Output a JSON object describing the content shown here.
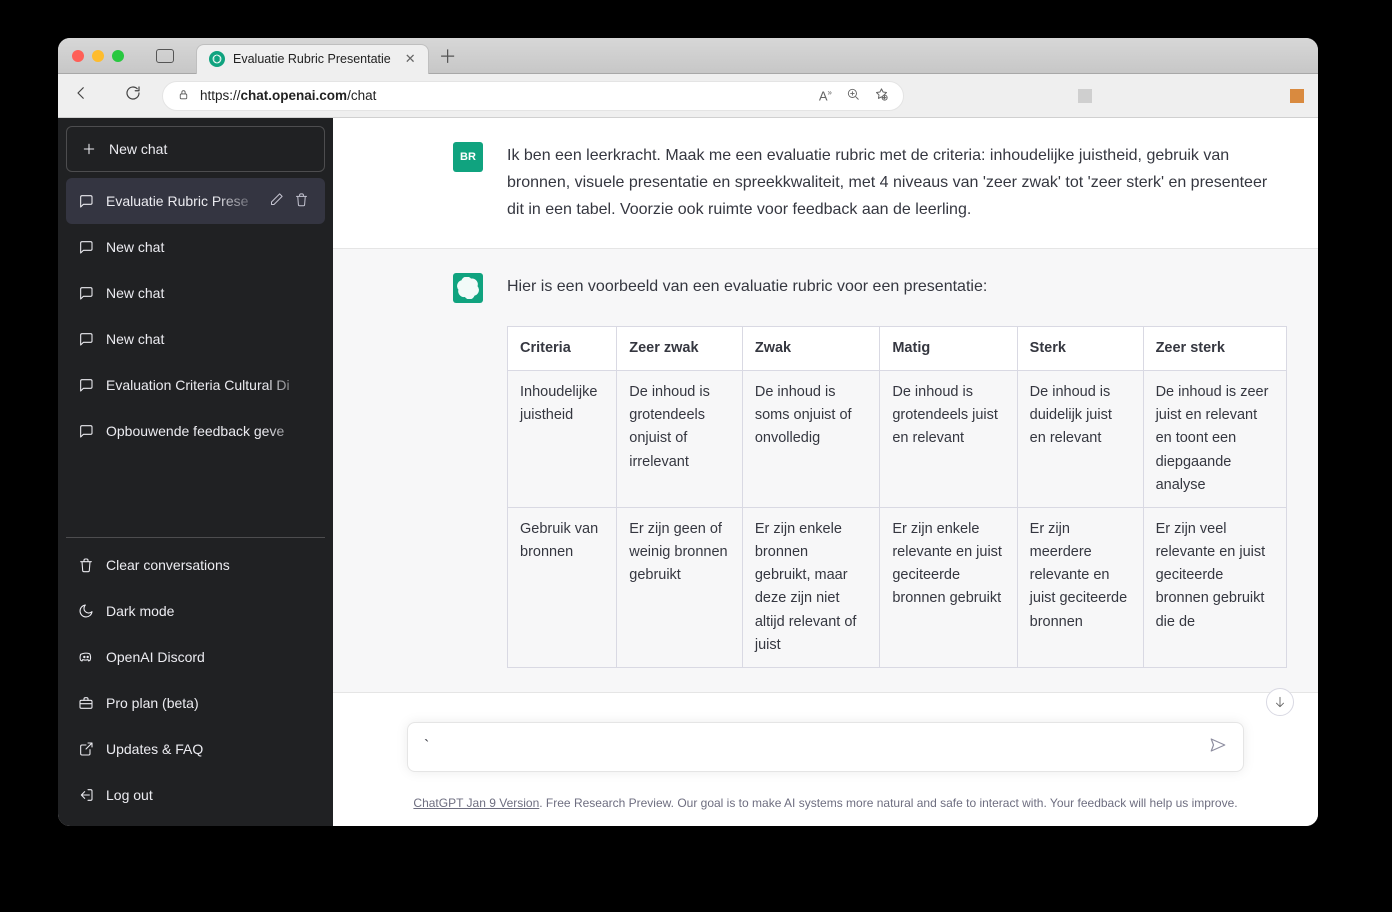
{
  "browser": {
    "tab_title": "Evaluatie Rubric Presentatie",
    "url_prefix": "https://",
    "url_host": "chat.openai.com",
    "url_path": "/chat"
  },
  "sidebar": {
    "new_chat": "New chat",
    "conversations": [
      {
        "label": "Evaluatie Rubric Prese",
        "active": true
      },
      {
        "label": "New chat",
        "active": false
      },
      {
        "label": "New chat",
        "active": false
      },
      {
        "label": "New chat",
        "active": false
      },
      {
        "label": "Evaluation Criteria Cultural Di",
        "active": false
      },
      {
        "label": "Opbouwende feedback geve",
        "active": false
      }
    ],
    "bottom": {
      "clear": "Clear conversations",
      "dark": "Dark mode",
      "discord": "OpenAI Discord",
      "pro": "Pro plan (beta)",
      "faq": "Updates & FAQ",
      "logout": "Log out"
    }
  },
  "user_avatar": "BR",
  "messages": {
    "user_text": "Ik ben een leerkracht. Maak me een evaluatie rubric met de criteria: inhoudelijke juistheid, gebruik van bronnen, visuele presentatie en spreekkwaliteit, met 4 niveaus van 'zeer zwak' tot 'zeer sterk' en presenteer dit in een tabel. Voorzie ook ruimte voor feedback aan de leerling.",
    "ai_intro": "Hier is een voorbeeld van een evaluatie rubric voor een presentatie:"
  },
  "table": {
    "headers": [
      "Criteria",
      "Zeer zwak",
      "Zwak",
      "Matig",
      "Sterk",
      "Zeer sterk"
    ],
    "rows": [
      [
        "Inhoudelijke juistheid",
        "De inhoud is grotendeels onjuist of irrelevant",
        "De inhoud is soms onjuist of onvolledig",
        "De inhoud is grotendeels juist en relevant",
        "De inhoud is duidelijk juist en relevant",
        "De inhoud is zeer juist en relevant en toont een diepgaande analyse"
      ],
      [
        "Gebruik van bronnen",
        "Er zijn geen of weinig bronnen gebruikt",
        "Er zijn enkele bronnen gebruikt, maar deze zijn niet altijd relevant of juist",
        "Er zijn enkele relevante en juist geciteerde bronnen gebruikt",
        "Er zijn meerdere relevante en juist geciteerde bronnen",
        "Er zijn veel relevante en juist geciteerde bronnen gebruikt die de"
      ]
    ],
    "col_widths": [
      "130px",
      "130px",
      "130px",
      "130px",
      "130px",
      "130px"
    ]
  },
  "input_value": "`",
  "footer_link": "ChatGPT Jan 9 Version",
  "footer_text": ". Free Research Preview. Our goal is to make AI systems more natural and safe to interact with. Your feedback will help us improve.",
  "colors": {
    "sidebar_bg": "#202123",
    "accent": "#10a37f",
    "assistant_bg": "#f7f7f8",
    "border": "#d9d9e3"
  }
}
